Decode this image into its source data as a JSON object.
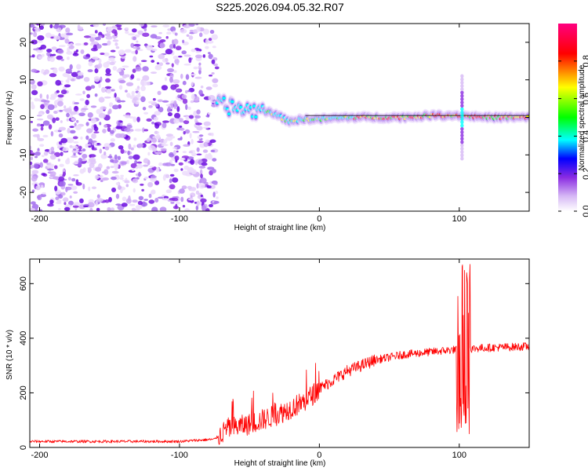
{
  "title": "S225.2026.094.05.32.R07",
  "chart_data": [
    {
      "type": "heatmap",
      "name": "spectrogram",
      "xlabel": "Height of straight line (km)",
      "ylabel": "Frequency (Hz)",
      "xlim": [
        -207,
        150
      ],
      "ylim": [
        -25,
        25
      ],
      "xticks": [
        -200,
        -100,
        0,
        100
      ],
      "yticks": [
        -20,
        -10,
        0,
        10,
        20
      ],
      "colorbar": {
        "label": "Normalized spectral amplitude",
        "range": [
          0,
          1
        ],
        "ticks": [
          0.0,
          0.2,
          0.4,
          0.6,
          0.8
        ],
        "tick_labels": [
          "0.0",
          "0.2",
          "0.4",
          "0.6",
          "0.8"
        ],
        "colors": [
          "#ffffff",
          "#8a2be2",
          "#0000ff",
          "#00ffff",
          "#00ff00",
          "#ffff00",
          "#ff0000",
          "#ff0080"
        ]
      },
      "features": {
        "noise_region_x": [
          -207,
          -73
        ],
        "signal_track": [
          {
            "x": -73,
            "y": 3.5
          },
          {
            "x": -60,
            "y": 2.5
          },
          {
            "x": -50,
            "y": 2.0
          },
          {
            "x": -35,
            "y": 1.5
          },
          {
            "x": -22,
            "y": -1.0
          },
          {
            "x": -10,
            "y": -0.5
          },
          {
            "x": 0,
            "y": -0.5
          },
          {
            "x": 20,
            "y": 0.0
          },
          {
            "x": 40,
            "y": 0.0
          },
          {
            "x": 60,
            "y": 0.0
          },
          {
            "x": 80,
            "y": 0.5
          },
          {
            "x": 100,
            "y": 0.5
          },
          {
            "x": 120,
            "y": 0.0
          },
          {
            "x": 150,
            "y": 0.0
          }
        ],
        "reference_line_y": 0.5,
        "spike_x": 102,
        "spike_y_range": [
          -11,
          11
        ]
      }
    },
    {
      "type": "line",
      "name": "snr",
      "xlabel": "Height of straight line (km)",
      "ylabel": "SNR (10 * v/v)",
      "xlim": [
        -207,
        150
      ],
      "ylim": [
        0,
        690
      ],
      "xticks": [
        -200,
        -100,
        0,
        100
      ],
      "yticks": [
        0,
        200,
        400,
        600
      ],
      "color": "#ff0000",
      "series_profile": [
        {
          "x": -207,
          "y": 22
        },
        {
          "x": -100,
          "y": 22
        },
        {
          "x": -75,
          "y": 30
        },
        {
          "x": -65,
          "y": 70
        },
        {
          "x": -50,
          "y": 85
        },
        {
          "x": -30,
          "y": 120
        },
        {
          "x": -10,
          "y": 170
        },
        {
          "x": 0,
          "y": 215
        },
        {
          "x": 20,
          "y": 280
        },
        {
          "x": 40,
          "y": 320
        },
        {
          "x": 60,
          "y": 340
        },
        {
          "x": 80,
          "y": 350
        },
        {
          "x": 100,
          "y": 360
        },
        {
          "x": 120,
          "y": 365
        },
        {
          "x": 150,
          "y": 370
        }
      ],
      "spike": {
        "x_range": [
          98,
          108
        ],
        "y_max": 690,
        "y_min": 40
      }
    }
  ]
}
